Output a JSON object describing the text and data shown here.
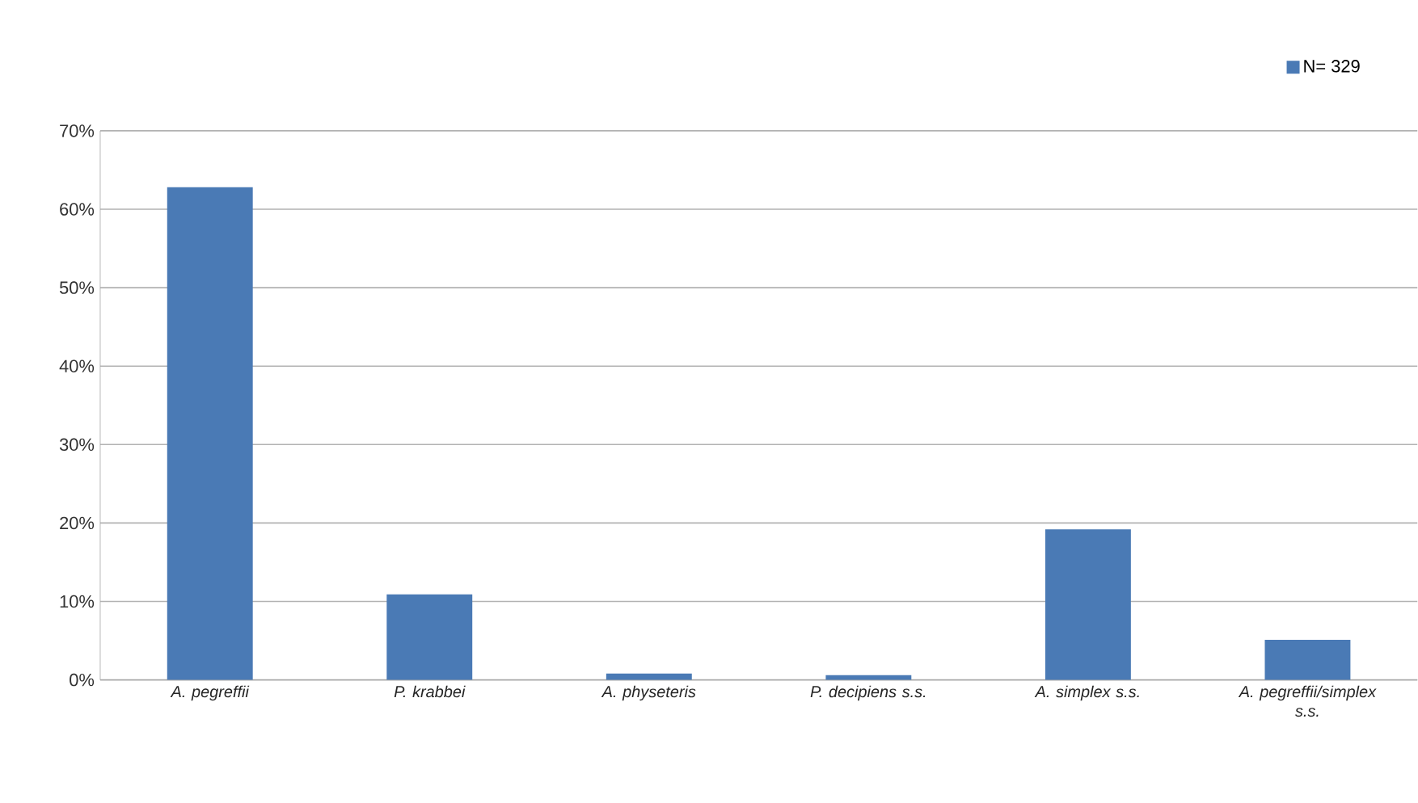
{
  "chart_data": {
    "type": "bar",
    "categories": [
      "A. pegreffii",
      "P. krabbei",
      "A. physeteris",
      "P. decipiens s.s.",
      "A. simplex s.s.",
      "A. pegreffii/simplex s.s."
    ],
    "series": [
      {
        "name": "N= 329",
        "color": "#4a7ab5",
        "values": [
          62.8,
          10.9,
          0.8,
          0.6,
          19.2,
          5.1
        ]
      }
    ],
    "ylim": [
      0,
      70
    ],
    "yticks": [
      {
        "value": 0,
        "label": "0%"
      },
      {
        "value": 10,
        "label": "10%"
      },
      {
        "value": 20,
        "label": "20%"
      },
      {
        "value": 30,
        "label": "30%"
      },
      {
        "value": 40,
        "label": "40%"
      },
      {
        "value": 50,
        "label": "50%"
      },
      {
        "value": 60,
        "label": "60%"
      },
      {
        "value": 70,
        "label": "70%"
      }
    ],
    "grid": "y",
    "legend": "top right"
  }
}
